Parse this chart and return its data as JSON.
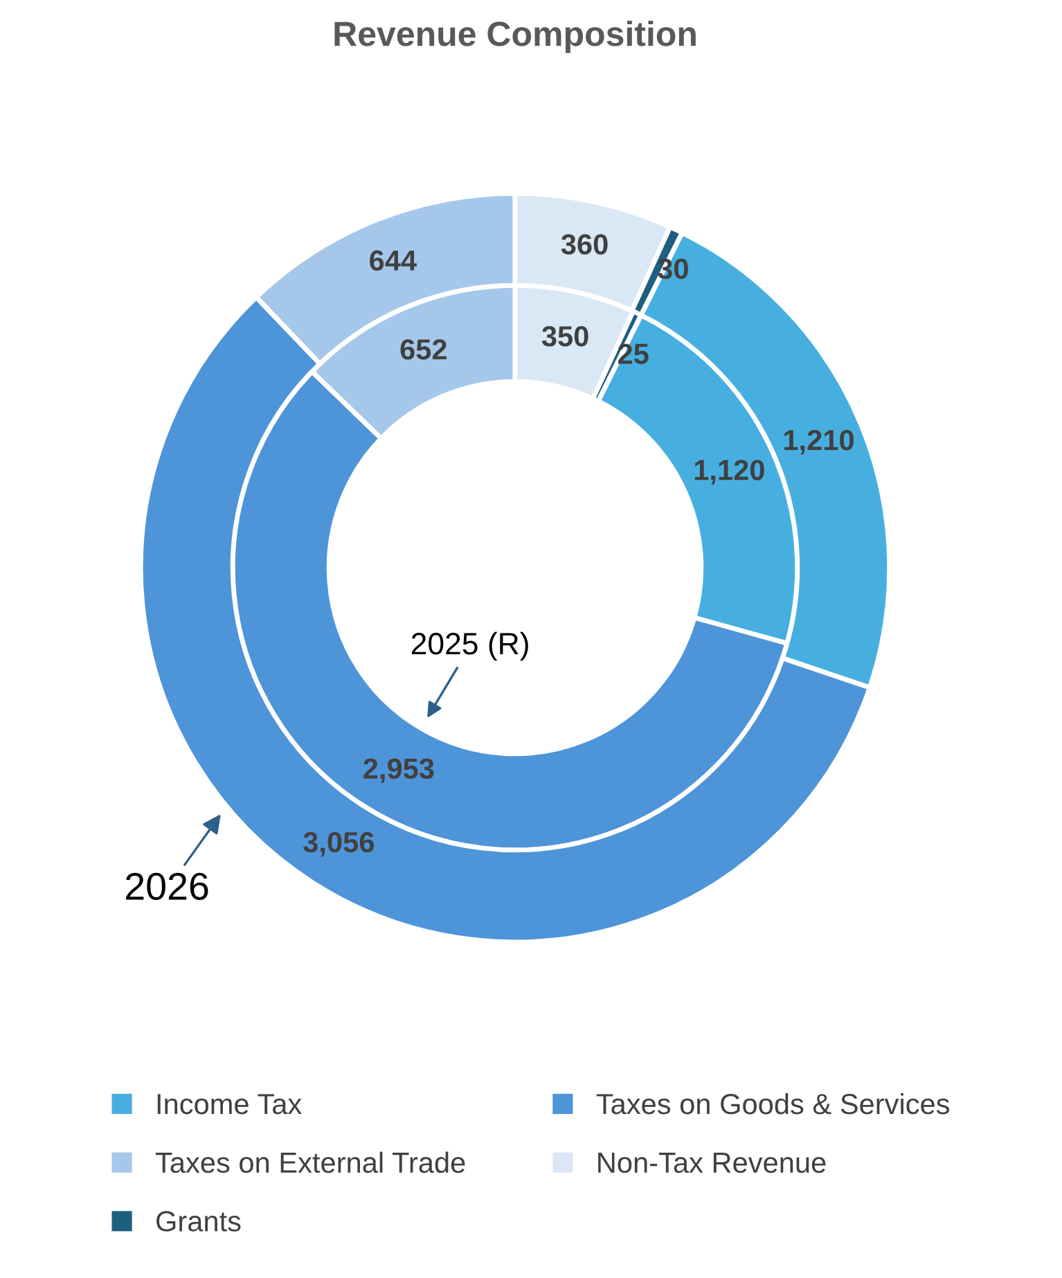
{
  "chart_data": {
    "type": "donut",
    "title": "Revenue Composition",
    "categories": [
      "Income Tax",
      "Taxes on Goods & Services",
      "Taxes on External Trade",
      "Non-Tax Revenue",
      "Grants"
    ],
    "colors": [
      "#47afe0",
      "#4e94d8",
      "#a5c8ea",
      "#dae7f5",
      "#1d5f7f"
    ],
    "series": [
      {
        "name": "2025 (R)",
        "values": [
          1120,
          2953,
          652,
          350,
          25
        ],
        "value_labels": [
          "1,120",
          "2,953",
          "652",
          "350",
          "25"
        ]
      },
      {
        "name": "2026",
        "values": [
          1210,
          3056,
          644,
          360,
          30
        ],
        "value_labels": [
          "1,210",
          "3,056",
          "644",
          "360",
          "30"
        ]
      }
    ],
    "legend": "bottom"
  }
}
